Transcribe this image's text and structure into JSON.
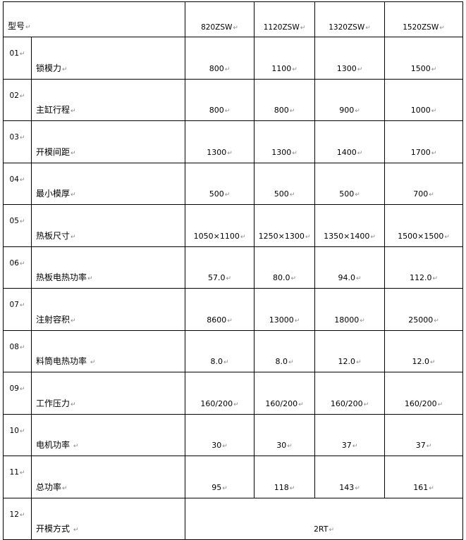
{
  "header": {
    "label": "型号",
    "models": [
      "820ZSW",
      "1120ZSW",
      "1320ZSW",
      "1520ZSW"
    ]
  },
  "rows": [
    {
      "no": "01",
      "name": "锁模力",
      "values": [
        "800",
        "1100",
        "1300",
        "1500"
      ]
    },
    {
      "no": "02",
      "name": "主缸行程",
      "values": [
        "800",
        "800",
        "900",
        "1000"
      ]
    },
    {
      "no": "03",
      "name": "开模间距",
      "values": [
        "1300",
        "1300",
        "1400",
        "1700"
      ]
    },
    {
      "no": "04",
      "name": "最小模厚",
      "values": [
        "500",
        "500",
        "500",
        "700"
      ]
    },
    {
      "no": "05",
      "name": "热板尺寸",
      "values": [
        "1050×1100",
        "1250×1300",
        "1350×1400",
        "1500×1500"
      ]
    },
    {
      "no": "06",
      "name": "热板电热功率",
      "values": [
        "57.0",
        "80.0",
        "94.0",
        "112.0"
      ]
    },
    {
      "no": "07",
      "name": "注射容积",
      "values": [
        "8600",
        "13000",
        "18000",
        "25000"
      ]
    },
    {
      "no": "08",
      "name": "料筒电热功率 ",
      "values": [
        "8.0",
        "8.0",
        "12.0",
        "12.0"
      ]
    },
    {
      "no": "09",
      "name": "工作压力",
      "values": [
        "160/200",
        "160/200",
        "160/200",
        "160/200"
      ]
    },
    {
      "no": "10",
      "name": "电机功率 ",
      "values": [
        "30",
        "30",
        "37",
        "37"
      ]
    },
    {
      "no": "11",
      "name": "总功率",
      "values": [
        "95",
        "118",
        "143",
        "161"
      ]
    }
  ],
  "last_row": {
    "no": "12",
    "name": "开模方式 ",
    "value": "2RT"
  }
}
